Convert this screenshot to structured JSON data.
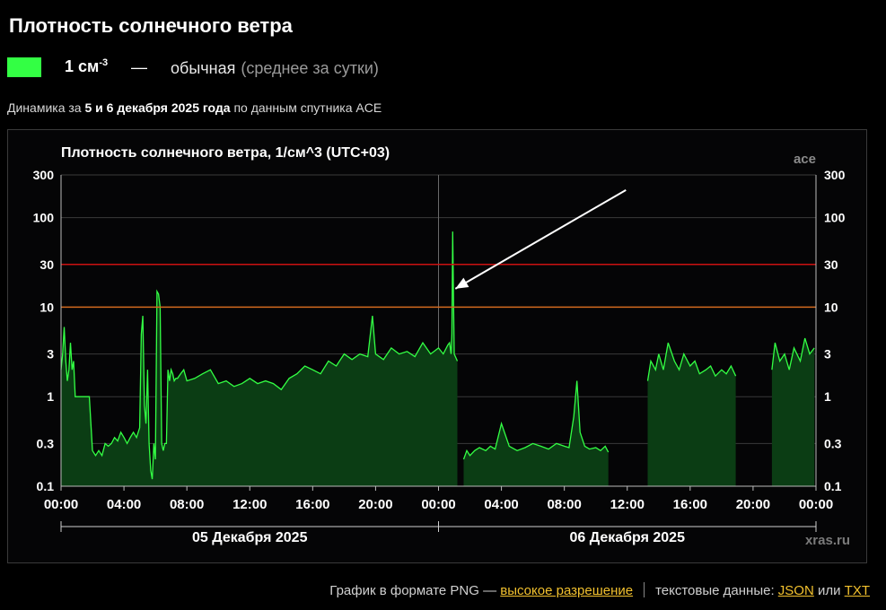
{
  "header": {
    "title": "Плотность солнечного ветра",
    "legend_value": "1 см",
    "legend_value_exp": "-3",
    "legend_dash": "—",
    "legend_desc": "обычная",
    "legend_note": "(среднее за сутки)",
    "dynamics_prefix": "Динамика за ",
    "dynamics_dates": "5 и 6 декабря 2025 года",
    "dynamics_suffix": " по данным спутника ACE"
  },
  "colors": {
    "series": "#33ff44",
    "fill": "#0b3d14",
    "threshold_high": "#cc1111",
    "threshold_mid": "#d2691e",
    "grid": "#3a3a3a",
    "link": "#f2c12e"
  },
  "chart_data": {
    "type": "area",
    "title": "Плотность солнечного ветра, 1/см^3 (UTC+03)",
    "source_label": "ace",
    "watermark": "xras.ru",
    "y_scale": "log",
    "ylim": [
      0.1,
      300
    ],
    "y_ticks": [
      0.1,
      0.3,
      1,
      3,
      10,
      30,
      100,
      300
    ],
    "y_tick_labels": [
      "0.1",
      "0.3",
      "1",
      "3",
      "10",
      "30",
      "100",
      "300"
    ],
    "xlim_hours": [
      0,
      48
    ],
    "x_tick_labels": [
      "00:00",
      "04:00",
      "08:00",
      "12:00",
      "16:00",
      "20:00",
      "00:00",
      "04:00",
      "08:00",
      "12:00",
      "16:00",
      "20:00",
      "00:00"
    ],
    "day_labels": [
      "05 Декабря 2025",
      "06 Декабря 2025"
    ],
    "thresholds": [
      {
        "value": 30,
        "color": "#cc1111"
      },
      {
        "value": 10,
        "color": "#d2691e"
      }
    ],
    "annotation": {
      "type": "arrow",
      "target_hour": 24.9,
      "target_value": 15
    },
    "series": [
      {
        "x": [
          0,
          0.1,
          0.2,
          0.3,
          0.4,
          0.5,
          0.6,
          0.7,
          0.8,
          0.9,
          1.0,
          1.2,
          1.5,
          1.8,
          2.0,
          2.2,
          2.4,
          2.6,
          2.8,
          3.0,
          3.2,
          3.4,
          3.6,
          3.8,
          4.0,
          4.2,
          4.4,
          4.6,
          4.8,
          5.0,
          5.1,
          5.2,
          5.3,
          5.4,
          5.5,
          5.6,
          5.7,
          5.8,
          5.9,
          6.0,
          6.1,
          6.2,
          6.3,
          6.4,
          6.5,
          6.6,
          6.7,
          6.8,
          6.9,
          7.0,
          7.1,
          7.2,
          7.3,
          7.4,
          7.6,
          7.8,
          8.0,
          8.5,
          9.0,
          9.5,
          10.0,
          10.5,
          11.0,
          11.5,
          12.0,
          12.5,
          13.0,
          13.5,
          14.0,
          14.5,
          15.0,
          15.5,
          16.0,
          16.5,
          17.0,
          17.5,
          18.0,
          18.5,
          19.0,
          19.5,
          19.8,
          20.0,
          20.5,
          21.0,
          21.5,
          22.0,
          22.5,
          23.0,
          23.5,
          24.0,
          24.3,
          24.6,
          24.7,
          24.8,
          24.85,
          24.9,
          24.95,
          25.0,
          25.2
        ],
        "values": [
          2,
          3,
          6,
          2.5,
          1.5,
          2,
          4,
          2,
          2.5,
          1,
          1,
          1,
          1,
          1,
          0.25,
          0.22,
          0.25,
          0.22,
          0.3,
          0.28,
          0.3,
          0.35,
          0.32,
          0.4,
          0.35,
          0.3,
          0.35,
          0.4,
          0.35,
          0.45,
          5,
          8,
          0.8,
          0.5,
          2,
          0.3,
          0.15,
          0.12,
          0.3,
          0.2,
          15,
          14,
          10,
          0.3,
          0.25,
          0.3,
          0.3,
          2,
          1.5,
          2,
          1.8,
          1.5,
          1.6,
          1.6,
          1.8,
          2,
          1.5,
          1.6,
          1.8,
          2,
          1.4,
          1.5,
          1.3,
          1.4,
          1.6,
          1.4,
          1.5,
          1.4,
          1.2,
          1.6,
          1.8,
          2.2,
          2,
          1.8,
          2.5,
          2.2,
          3,
          2.6,
          3,
          2.8,
          8,
          3,
          2.6,
          3.5,
          3,
          3.2,
          2.8,
          4,
          3,
          3.5,
          3,
          3.8,
          4,
          3,
          5,
          70,
          15,
          3,
          2.5
        ],
        "note": "05 Dec 00:00 → 06 Dec 01:10 (main interval)"
      },
      {
        "x": [
          25.6,
          25.8,
          26.0,
          26.3,
          26.6,
          27.0,
          27.3,
          27.6,
          28.0,
          28.5,
          29.0,
          29.5,
          30.0,
          30.5,
          31.0,
          31.5,
          32.0,
          32.3,
          32.6,
          32.8,
          33.0,
          33.3,
          33.6,
          34.0,
          34.3,
          34.6,
          34.8
        ],
        "values": [
          0.2,
          0.25,
          0.22,
          0.25,
          0.27,
          0.25,
          0.28,
          0.26,
          0.5,
          0.28,
          0.25,
          0.27,
          0.3,
          0.28,
          0.26,
          0.3,
          0.28,
          0.27,
          0.6,
          1.5,
          0.4,
          0.28,
          0.26,
          0.27,
          0.25,
          0.28,
          0.24
        ],
        "note": "06 Dec 01:35 → 10:50"
      },
      {
        "x": [
          37.3,
          37.5,
          37.8,
          38.0,
          38.3,
          38.6,
          39.0,
          39.3,
          39.6,
          40.0,
          40.3,
          40.6,
          41.0,
          41.3,
          41.6,
          42.0,
          42.3,
          42.6,
          42.9
        ],
        "values": [
          1.5,
          2.5,
          2,
          3,
          2,
          4,
          2.5,
          2,
          3,
          2.2,
          2.5,
          1.8,
          2,
          2.2,
          1.7,
          2,
          1.8,
          2.2,
          1.7
        ],
        "note": "06 Dec 13:20 → 18:55"
      },
      {
        "x": [
          45.2,
          45.4,
          45.7,
          46.0,
          46.3,
          46.6,
          47.0,
          47.3,
          47.6,
          47.9
        ],
        "values": [
          2,
          4,
          2.5,
          3,
          2,
          3.5,
          2.5,
          4.5,
          3,
          3.5
        ],
        "note": "06 Dec 21:15 → 24:00"
      }
    ]
  },
  "footer": {
    "prefix": "График в формате PNG — ",
    "hi_res_link": "высокое разрешение",
    "text_data_prefix": "текстовые данные: ",
    "json_link": "JSON",
    "or_text": " или ",
    "txt_link": "TXT"
  }
}
